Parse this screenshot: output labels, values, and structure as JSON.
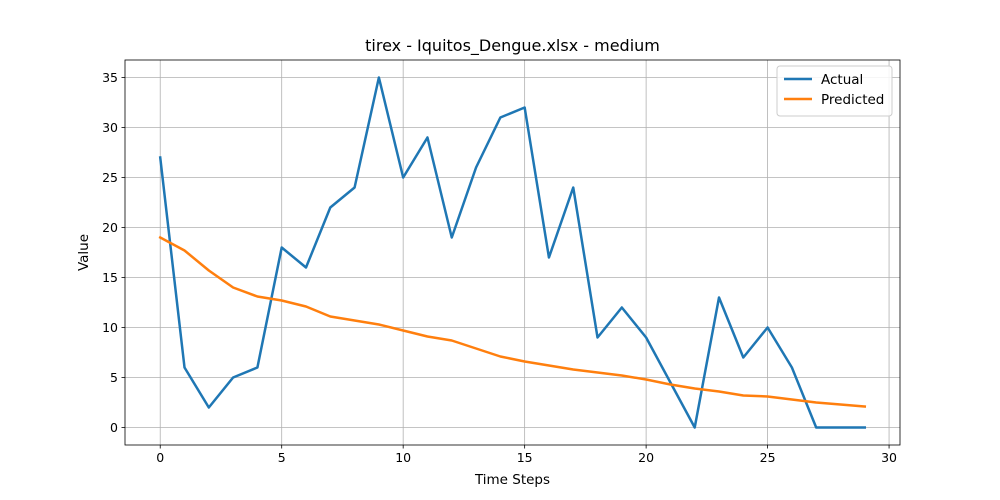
{
  "chart_data": {
    "type": "line",
    "title": "tirex - Iquitos_Dengue.xlsx - medium",
    "xlabel": "Time Steps",
    "ylabel": "Value",
    "xlim": [
      -1.45,
      30.45
    ],
    "ylim": [
      -1.75,
      36.75
    ],
    "xticks": [
      0,
      5,
      10,
      15,
      20,
      25,
      30
    ],
    "yticks": [
      0,
      5,
      10,
      15,
      20,
      25,
      30,
      35
    ],
    "grid": true,
    "legend_position": "top-right",
    "x": [
      0,
      1,
      2,
      3,
      4,
      5,
      6,
      7,
      8,
      9,
      10,
      11,
      12,
      13,
      14,
      15,
      16,
      17,
      18,
      19,
      20,
      21,
      22,
      23,
      24,
      25,
      26,
      27,
      28,
      29
    ],
    "series": [
      {
        "name": "Actual",
        "color": "#1f77b4",
        "values": [
          27,
          6,
          2,
          5,
          6,
          18,
          16,
          22,
          24,
          35,
          25,
          29,
          19,
          26,
          31,
          32,
          17,
          24,
          9,
          12,
          9,
          4.5,
          0,
          13,
          7,
          10,
          6,
          0,
          0,
          0
        ]
      },
      {
        "name": "Predicted",
        "color": "#ff7f0e",
        "values": [
          19,
          17.7,
          15.7,
          14,
          13.1,
          12.7,
          12.1,
          11.1,
          10.7,
          10.3,
          9.7,
          9.1,
          8.7,
          7.9,
          7.1,
          6.6,
          6.2,
          5.8,
          5.5,
          5.2,
          4.8,
          4.3,
          3.9,
          3.6,
          3.2,
          3.1,
          2.8,
          2.5,
          2.3,
          2.1
        ]
      }
    ]
  }
}
